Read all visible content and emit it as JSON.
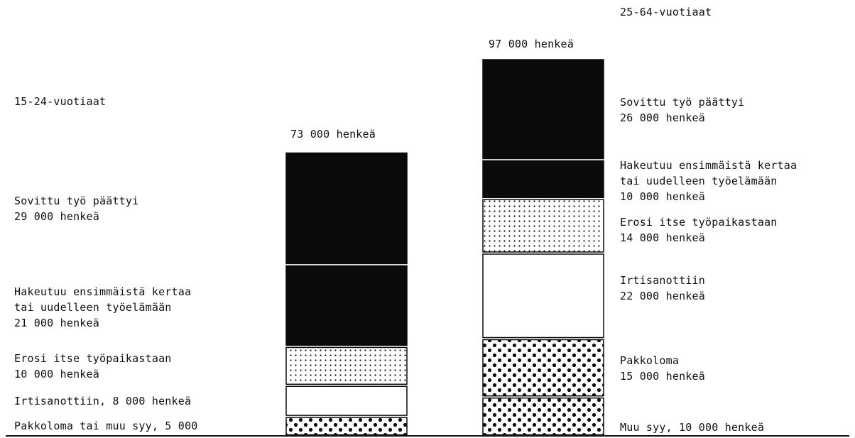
{
  "colors": {
    "black": "#0b0b0b",
    "white": "#ffffff",
    "ink": "#111111"
  },
  "chart_data": {
    "type": "bar",
    "stacked": true,
    "unit": "henkeä",
    "groups": [
      {
        "title": "15-24-vuotiaat",
        "total_label": "73 000 henkeä",
        "total": 73000,
        "segments": [
          {
            "lines": [
              "Pakkoloma tai muu syy, 5 000"
            ],
            "value": 5000,
            "pattern": "dense-dots"
          },
          {
            "lines": [
              "Irtisanottiin, 8 000 henkeä"
            ],
            "value": 8000,
            "pattern": "blank"
          },
          {
            "lines": [
              "Erosi itse työpaikastaan",
              "10 000 henkeä"
            ],
            "value": 10000,
            "pattern": "sparse-dots"
          },
          {
            "lines": [
              "Hakeutuu ensimmäistä kertaa",
              "tai uudelleen työelämään",
              "21 000 henkeä"
            ],
            "value": 21000,
            "pattern": "solid"
          },
          {
            "lines": [
              "Sovittu työ päättyi",
              "29 000 henkeä"
            ],
            "value": 29000,
            "pattern": "solid"
          }
        ]
      },
      {
        "title": "25-64-vuotiaat",
        "total_label": "97 000 henkeä",
        "total": 97000,
        "segments": [
          {
            "lines": [
              "Muu syy, 10 000 henkeä"
            ],
            "value": 10000,
            "pattern": "dense-dots"
          },
          {
            "lines": [
              "Pakkoloma",
              "15 000 henkeä"
            ],
            "value": 15000,
            "pattern": "dense-dots"
          },
          {
            "lines": [
              "Irtisanottiin",
              "22 000 henkeä"
            ],
            "value": 22000,
            "pattern": "blank"
          },
          {
            "lines": [
              "Erosi itse työpaikastaan",
              "14 000 henkeä"
            ],
            "value": 14000,
            "pattern": "sparse-dots"
          },
          {
            "lines": [
              "Hakeutuu ensimmäistä kertaa",
              "tai uudelleen työelämään",
              "10 000 henkeä"
            ],
            "value": 10000,
            "pattern": "solid"
          },
          {
            "lines": [
              "Sovittu työ päättyi",
              "26 000 henkeä"
            ],
            "value": 26000,
            "pattern": "solid"
          }
        ]
      }
    ]
  }
}
